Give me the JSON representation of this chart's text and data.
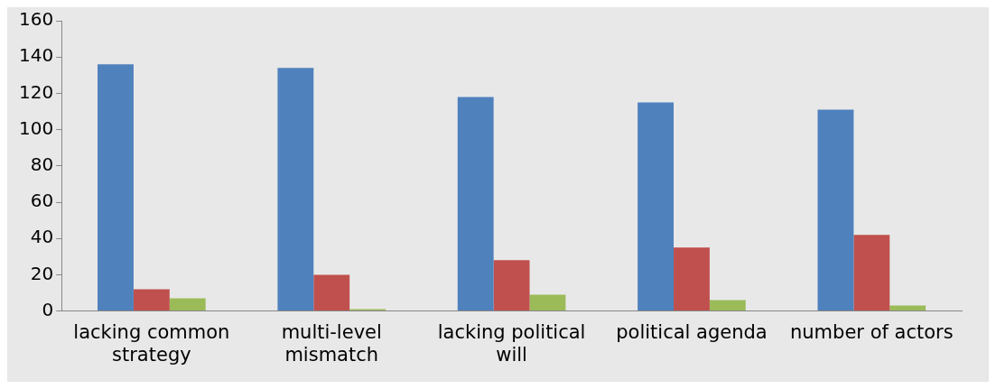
{
  "chart_data": {
    "type": "bar",
    "categories": [
      "lacking common strategy",
      "multi-level mismatch",
      "lacking political will",
      "political agenda",
      "number of actors"
    ],
    "series": [
      {
        "color": "#4f81bd",
        "values": [
          136,
          134,
          118,
          115,
          111
        ]
      },
      {
        "color": "#c0504d",
        "values": [
          12,
          20,
          28,
          35,
          42
        ]
      },
      {
        "color": "#9bbb59",
        "values": [
          7,
          1,
          9,
          6,
          3
        ]
      }
    ],
    "ylim": [
      0,
      160
    ],
    "yticks": [
      0,
      20,
      40,
      60,
      80,
      100,
      120,
      140,
      160
    ],
    "grid": false,
    "legend": false
  }
}
